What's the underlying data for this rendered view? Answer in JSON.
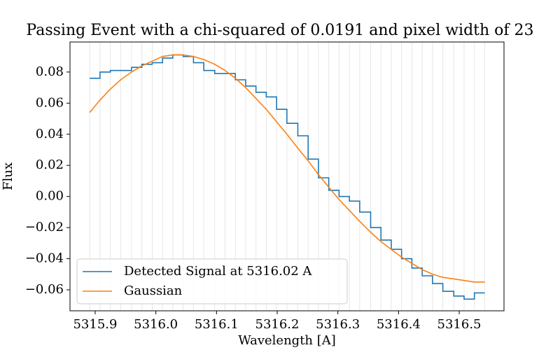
{
  "chart_data": {
    "type": "line",
    "title": "Passing Event with a chi-squared of 0.0191 and pixel width of 23",
    "x_label": "Wavelength [A]",
    "y_label": "Flux",
    "x": [
      5315.891,
      5315.908,
      5315.925,
      5315.942,
      5315.96,
      5315.977,
      5315.994,
      5316.011,
      5316.028,
      5316.045,
      5316.062,
      5316.079,
      5316.097,
      5316.114,
      5316.131,
      5316.148,
      5316.165,
      5316.182,
      5316.199,
      5316.216,
      5316.234,
      5316.251,
      5316.268,
      5316.285,
      5316.302,
      5316.319,
      5316.336,
      5316.354,
      5316.371,
      5316.388,
      5316.405,
      5316.422,
      5316.439,
      5316.456,
      5316.473,
      5316.491,
      5316.508,
      5316.525,
      5316.542
    ],
    "series": [
      {
        "name": "Detected Signal at 5316.02 A",
        "color": "#1f77b4",
        "drawstyle": "steps-post",
        "values": [
          0.076,
          0.08,
          0.081,
          0.081,
          0.083,
          0.085,
          0.086,
          0.089,
          0.091,
          0.09,
          0.086,
          0.081,
          0.079,
          0.079,
          0.075,
          0.071,
          0.067,
          0.064,
          0.056,
          0.047,
          0.039,
          0.024,
          0.012,
          0.004,
          0.0,
          -0.003,
          -0.01,
          -0.02,
          -0.028,
          -0.034,
          -0.04,
          -0.046,
          -0.051,
          -0.056,
          -0.061,
          -0.064,
          -0.066,
          -0.062,
          -0.062
        ]
      },
      {
        "name": "Gaussian",
        "color": "#ff7f0e",
        "drawstyle": "default",
        "values": [
          0.054,
          0.062,
          0.069,
          0.075,
          0.08,
          0.084,
          0.087,
          0.09,
          0.091,
          0.091,
          0.09,
          0.088,
          0.085,
          0.081,
          0.076,
          0.07,
          0.063,
          0.056,
          0.048,
          0.04,
          0.031,
          0.023,
          0.014,
          0.006,
          -0.002,
          -0.009,
          -0.016,
          -0.023,
          -0.029,
          -0.034,
          -0.039,
          -0.043,
          -0.047,
          -0.05,
          -0.052,
          -0.053,
          -0.054,
          -0.055,
          -0.055
        ]
      }
    ],
    "xlim": [
      5315.8585,
      5316.5738
    ],
    "ylim": [
      -0.0735,
      0.0993
    ],
    "xticks": [
      5315.9,
      {
        "value": 5316.0,
        "label": "5316.0"
      },
      5316.1,
      5316.2,
      5316.3,
      5316.4,
      5316.5
    ],
    "yticks": [
      {
        "value": -0.06,
        "label": "−0.06"
      },
      {
        "value": -0.04,
        "label": "−0.04"
      },
      {
        "value": -0.02,
        "label": "−0.02"
      },
      {
        "value": 0,
        "label": "0.00"
      },
      {
        "value": 0.02,
        "label": "0.02"
      },
      {
        "value": 0.04,
        "label": "0.04"
      },
      {
        "value": 0.06,
        "label": "0.06"
      },
      {
        "value": 0.08,
        "label": "0.08"
      }
    ],
    "x_gridlines_at_data": true,
    "gridline_color": "#e6e6e6",
    "legend": "lower left"
  }
}
